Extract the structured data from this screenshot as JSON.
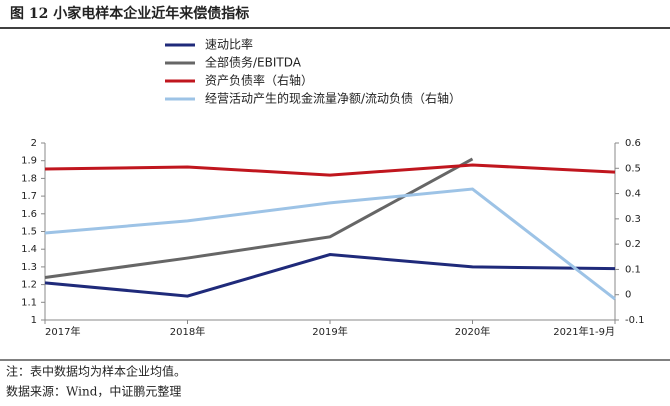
{
  "chart_data": {
    "type": "line",
    "title": "图 12 小家电样本企业近年来偿债指标",
    "categories": [
      "2017年",
      "2018年",
      "2019年",
      "2020年",
      "2021年1-9月"
    ],
    "series": [
      {
        "name": "速动比率",
        "color": "#1f2a7a",
        "values": [
          1.21,
          1.135,
          1.37,
          1.3,
          1.29
        ]
      },
      {
        "name": "全部债务/EBITDA",
        "color": "#666666",
        "values": [
          1.24,
          1.35,
          1.47,
          1.91,
          null
        ]
      },
      {
        "name": "资产负债率（右轴）",
        "color": "#c0161e",
        "axis": "y2",
        "values": [
          0.497,
          0.505,
          0.473,
          0.513,
          0.485
        ]
      },
      {
        "name": "经营活动产生的现金流量净额/流动负债（右轴）",
        "color": "#9dc3e6",
        "axis": "y2",
        "values": [
          0.244,
          0.292,
          0.363,
          0.418,
          -0.017
        ]
      }
    ],
    "ylim": [
      1,
      2
    ],
    "yticks": [
      1,
      1.1,
      1.2,
      1.3,
      1.4,
      1.5,
      1.6,
      1.7,
      1.8,
      1.9,
      2
    ],
    "y2lim": [
      -0.1,
      0.6
    ],
    "y2ticks": [
      -0.1,
      0,
      0.1,
      0.2,
      0.3,
      0.4,
      0.5,
      0.6
    ],
    "legend": "top-left",
    "notes": [
      "注：表中数据均为样本企业均值。",
      "数据来源：Wind，中证鹏元整理"
    ]
  }
}
